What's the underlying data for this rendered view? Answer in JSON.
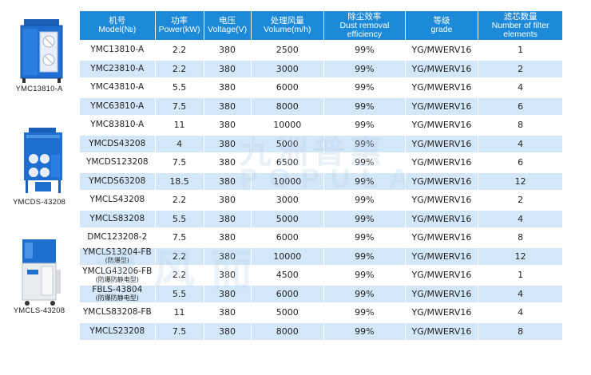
{
  "header": {
    "model": [
      "机号",
      "Model(№)"
    ],
    "power": [
      "功率",
      "Power(kW)"
    ],
    "voltage": [
      "电压",
      "Voltage(V)"
    ],
    "volume": [
      "处理风量",
      "Volume(m/h)"
    ],
    "efficiency": [
      "除尘效率",
      "Dust removal",
      "efficiency"
    ],
    "grade": [
      "等级",
      "grade"
    ],
    "filters": [
      "滤芯数量",
      "Number of filter",
      "elements"
    ]
  },
  "rows": [
    {
      "model": "YMC13810-A",
      "note": "",
      "power": "2.2",
      "voltage": "380",
      "volume": "2500",
      "efficiency": "99%",
      "grade": "YG/MWERV16",
      "filters": "1"
    },
    {
      "model": "YMC23810-A",
      "note": "",
      "power": "2.2",
      "voltage": "380",
      "volume": "3000",
      "efficiency": "99%",
      "grade": "YG/MWERV16",
      "filters": "2"
    },
    {
      "model": "YMC43810-A",
      "note": "",
      "power": "5.5",
      "voltage": "380",
      "volume": "6000",
      "efficiency": "99%",
      "grade": "YG/MWERV16",
      "filters": "4"
    },
    {
      "model": "YMC63810-A",
      "note": "",
      "power": "7.5",
      "voltage": "380",
      "volume": "8000",
      "efficiency": "99%",
      "grade": "YG/MWERV16",
      "filters": "6"
    },
    {
      "model": "YMC83810-A",
      "note": "",
      "power": "11",
      "voltage": "380",
      "volume": "10000",
      "efficiency": "99%",
      "grade": "YG/MWERV16",
      "filters": "8"
    },
    {
      "model": "YMCDS43208",
      "note": "",
      "power": "4",
      "voltage": "380",
      "volume": "5000",
      "efficiency": "99%",
      "grade": "YG/MWERV16",
      "filters": "4"
    },
    {
      "model": "YMCDS123208",
      "note": "",
      "power": "7.5",
      "voltage": "380",
      "volume": "6500",
      "efficiency": "99%",
      "grade": "YG/MWERV16",
      "filters": "6"
    },
    {
      "model": "YMCDS63208",
      "note": "",
      "power": "18.5",
      "voltage": "380",
      "volume": "10000",
      "efficiency": "99%",
      "grade": "YG/MWERV16",
      "filters": "12"
    },
    {
      "model": "YMCLS43208",
      "note": "",
      "power": "2.2",
      "voltage": "380",
      "volume": "3000",
      "efficiency": "99%",
      "grade": "YG/MWERV16",
      "filters": "2"
    },
    {
      "model": "YMCLS83208",
      "note": "",
      "power": "5.5",
      "voltage": "380",
      "volume": "5000",
      "efficiency": "99%",
      "grade": "YG/MWERV16",
      "filters": "4"
    },
    {
      "model": "DMC123208-2",
      "note": "",
      "power": "7.5",
      "voltage": "380",
      "volume": "6000",
      "efficiency": "99%",
      "grade": "YG/MWERV16",
      "filters": "8"
    },
    {
      "model": "YMCLS13204-FB",
      "note": "(防爆型)",
      "power": "2.2",
      "voltage": "380",
      "volume": "10000",
      "efficiency": "99%",
      "grade": "YG/MWERV16",
      "filters": "12"
    },
    {
      "model": "YMCLG43206-FB",
      "note": "(防爆防静电型)",
      "power": "2.2",
      "voltage": "380",
      "volume": "4500",
      "efficiency": "99%",
      "grade": "YG/MWERV16",
      "filters": "1"
    },
    {
      "model": "FBLS-43804",
      "note": "(防爆防静电型)",
      "power": "5.5",
      "voltage": "380",
      "volume": "6000",
      "efficiency": "99%",
      "grade": "YG/MWERV16",
      "filters": "4"
    },
    {
      "model": "YMCLS83208-FB",
      "note": "",
      "power": "11",
      "voltage": "380",
      "volume": "5000",
      "efficiency": "99%",
      "grade": "YG/MWERV16",
      "filters": "4"
    },
    {
      "model": "YMCLS23208",
      "note": "",
      "power": "7.5",
      "voltage": "380",
      "volume": "8000",
      "efficiency": "99%",
      "grade": "YG/MWERV16",
      "filters": "8"
    }
  ],
  "machines": [
    {
      "caption": "YMC13810-A"
    },
    {
      "caption": "YMCDS-43208"
    },
    {
      "caption": "YMCLS-43208"
    }
  ],
  "watermark": {
    "cn": "九洲普惠",
    "en": "POPULA",
    "cn2": "洲风而"
  },
  "colors": {
    "header": "#1c8ad8",
    "stripe": "#d3e7f8",
    "machine_blue": "#1f6fd0"
  }
}
